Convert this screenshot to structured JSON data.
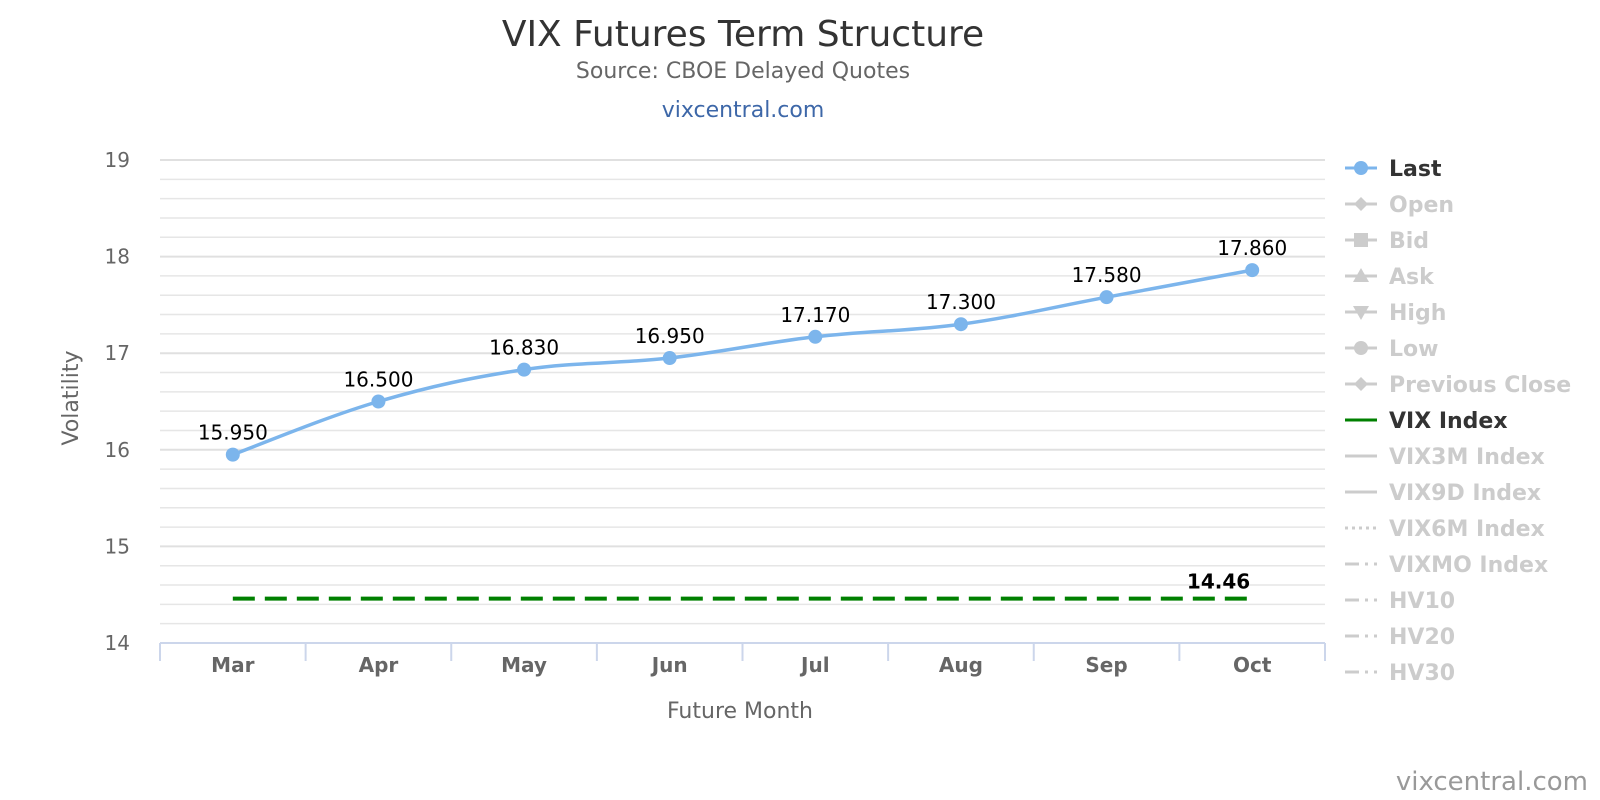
{
  "chart_data": {
    "type": "line",
    "title": "VIX Futures Term Structure",
    "subtitle": "Source: CBOE Delayed Quotes",
    "link_text": "vixcentral.com",
    "credit": "vixcentral.com",
    "xlabel": "Future Month",
    "ylabel": "Volatility",
    "ylim": [
      14,
      19
    ],
    "y_ticks": [
      14,
      15,
      16,
      17,
      18,
      19
    ],
    "categories": [
      "Mar",
      "Apr",
      "May",
      "Jun",
      "Jul",
      "Aug",
      "Sep",
      "Oct"
    ],
    "grid": true,
    "legend_position": "right",
    "series": [
      {
        "name": "Last",
        "values": [
          15.95,
          16.5,
          16.83,
          16.95,
          17.17,
          17.3,
          17.58,
          17.86
        ],
        "labels": [
          "15.950",
          "16.500",
          "16.830",
          "16.950",
          "17.170",
          "17.300",
          "17.580",
          "17.860"
        ],
        "color": "#7cb5ec",
        "style": "smooth-line-with-markers"
      },
      {
        "name": "VIX Index",
        "values": [
          14.46,
          14.46,
          14.46,
          14.46,
          14.46,
          14.46,
          14.46,
          14.46
        ],
        "end_label": "14.46",
        "color": "#008000",
        "style": "dashed"
      }
    ],
    "legend": [
      {
        "name": "Last",
        "active": true,
        "symbol": "circle",
        "line": "solid"
      },
      {
        "name": "Open",
        "active": false,
        "symbol": "diamond",
        "line": "solid"
      },
      {
        "name": "Bid",
        "active": false,
        "symbol": "square",
        "line": "solid"
      },
      {
        "name": "Ask",
        "active": false,
        "symbol": "triangle",
        "line": "solid"
      },
      {
        "name": "High",
        "active": false,
        "symbol": "triangle-down",
        "line": "solid"
      },
      {
        "name": "Low",
        "active": false,
        "symbol": "circle",
        "line": "solid"
      },
      {
        "name": "Previous Close",
        "active": false,
        "symbol": "diamond",
        "line": "solid"
      },
      {
        "name": "VIX Index",
        "active": true,
        "symbol": "none",
        "line": "solid"
      },
      {
        "name": "VIX3M Index",
        "active": false,
        "symbol": "none",
        "line": "solid"
      },
      {
        "name": "VIX9D Index",
        "active": false,
        "symbol": "none",
        "line": "solid"
      },
      {
        "name": "VIX6M Index",
        "active": false,
        "symbol": "none",
        "line": "dotted"
      },
      {
        "name": "VIXMO Index",
        "active": false,
        "symbol": "none",
        "line": "dashdot"
      },
      {
        "name": "HV10",
        "active": false,
        "symbol": "none",
        "line": "dashdot"
      },
      {
        "name": "HV20",
        "active": false,
        "symbol": "none",
        "line": "dashdot"
      },
      {
        "name": "HV30",
        "active": false,
        "symbol": "none",
        "line": "dashdot"
      }
    ],
    "colors": {
      "active_legend_text": "#333333",
      "inactive_legend": "#cccccc",
      "grid": "#e6e6e6",
      "axis": "#ccd6eb"
    }
  }
}
